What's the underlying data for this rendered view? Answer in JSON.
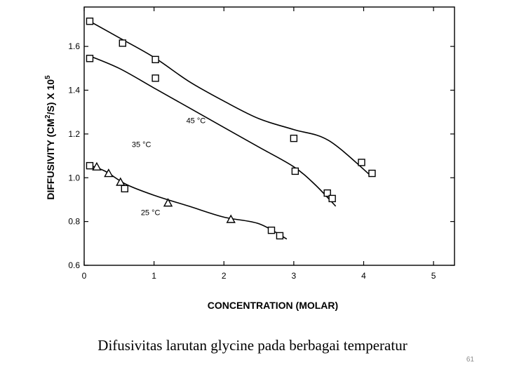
{
  "chart_data": {
    "type": "scatter",
    "xlabel": "CONCENTRATION (MOLAR)",
    "ylabel_parts": [
      "DIFFUSIVITY (CM",
      "2",
      "/S) X 10",
      "5"
    ],
    "xlim": [
      0,
      5.3
    ],
    "ylim": [
      0.6,
      1.78
    ],
    "x_ticks": [
      0,
      1,
      2,
      3,
      4,
      5
    ],
    "y_ticks": [
      0.6,
      0.8,
      1.0,
      1.2,
      1.4,
      1.6
    ],
    "y_tick_labels": [
      "0.6",
      "0.8",
      "1.0",
      "1.2",
      "1.4",
      "1.6"
    ],
    "grid": false,
    "series": [
      {
        "name": "45 °C",
        "fit": [
          [
            0.05,
            1.72
          ],
          [
            0.5,
            1.64
          ],
          [
            1.0,
            1.55
          ],
          [
            1.5,
            1.44
          ],
          [
            2.0,
            1.35
          ],
          [
            2.5,
            1.27
          ],
          [
            3.0,
            1.22
          ],
          [
            3.5,
            1.17
          ],
          [
            4.1,
            1.01
          ]
        ],
        "squares": [
          [
            0.08,
            1.715
          ],
          [
            0.55,
            1.615
          ],
          [
            1.02,
            1.54
          ],
          [
            3.0,
            1.18
          ],
          [
            3.97,
            1.07
          ],
          [
            4.12,
            1.02
          ]
        ],
        "triangles": []
      },
      {
        "name": "35 °C",
        "fit": [
          [
            0.05,
            1.56
          ],
          [
            0.5,
            1.5
          ],
          [
            1.0,
            1.41
          ],
          [
            1.5,
            1.32
          ],
          [
            2.0,
            1.23
          ],
          [
            2.5,
            1.14
          ],
          [
            3.0,
            1.05
          ],
          [
            3.3,
            0.97
          ],
          [
            3.6,
            0.87
          ]
        ],
        "squares": [
          [
            0.08,
            1.545
          ],
          [
            1.02,
            1.455
          ],
          [
            3.02,
            1.03
          ],
          [
            3.48,
            0.93
          ],
          [
            3.55,
            0.905
          ]
        ],
        "triangles": []
      },
      {
        "name": "25 °C",
        "fit": [
          [
            0.05,
            1.06
          ],
          [
            0.3,
            1.03
          ],
          [
            0.6,
            0.97
          ],
          [
            1.0,
            0.92
          ],
          [
            1.5,
            0.87
          ],
          [
            2.0,
            0.82
          ],
          [
            2.5,
            0.79
          ],
          [
            2.9,
            0.72
          ]
        ],
        "squares": [
          [
            0.08,
            1.055
          ],
          [
            0.58,
            0.95
          ],
          [
            2.68,
            0.76
          ],
          [
            2.8,
            0.735
          ]
        ],
        "triangles": [
          [
            0.18,
            1.05
          ],
          [
            0.35,
            1.02
          ],
          [
            0.52,
            0.98
          ],
          [
            1.2,
            0.885
          ],
          [
            2.1,
            0.81
          ]
        ]
      }
    ]
  },
  "caption": "Difusivitas larutan glycine pada berbagai temperatur",
  "page_number": "61"
}
